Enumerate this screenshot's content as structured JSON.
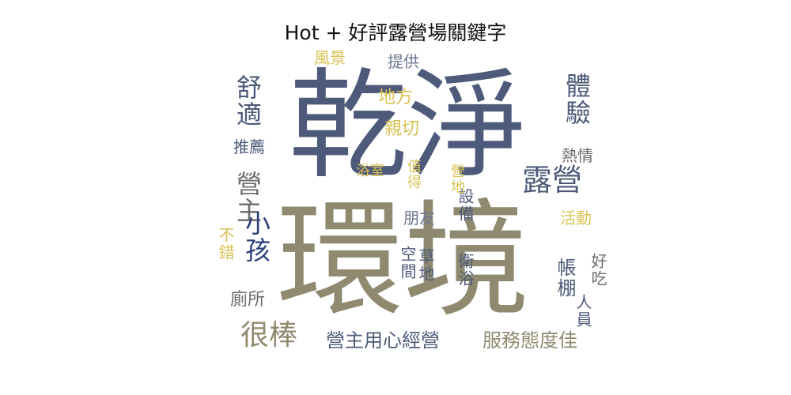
{
  "title": "Hot + 好評露營場關鍵字",
  "colors": {
    "navy": "#4d5a79",
    "khaki": "#8f8a6f",
    "gold": "#d9c253",
    "lightnavy": "#6f7792",
    "gray": "#6b6b6b",
    "darkblue": "#2a3f7a"
  },
  "chart_data": {
    "type": "wordcloud",
    "title": "Hot + 好評露營場關鍵字",
    "words": [
      {
        "text": "乾淨",
        "weight": 100,
        "color": "#4d5a79",
        "vertical": false
      },
      {
        "text": "環境",
        "weight": 96,
        "color": "#8f8a6f",
        "vertical": false
      },
      {
        "text": "露營",
        "weight": 30,
        "color": "#4d5a79",
        "vertical": false
      },
      {
        "text": "很棒",
        "weight": 28,
        "color": "#8f8a6f",
        "vertical": false
      },
      {
        "text": "舒適",
        "weight": 26,
        "color": "#4d5a79",
        "vertical": true
      },
      {
        "text": "營主",
        "weight": 26,
        "color": "#6b6b6b",
        "vertical": true
      },
      {
        "text": "體驗",
        "weight": 26,
        "color": "#4d5a79",
        "vertical": true
      },
      {
        "text": "小孩",
        "weight": 26,
        "color": "#2a3f7a",
        "vertical": true
      },
      {
        "text": "營主用心經營",
        "weight": 20,
        "color": "#4d5a79",
        "vertical": false
      },
      {
        "text": "服務態度佳",
        "weight": 20,
        "color": "#8f8a6f",
        "vertical": false
      },
      {
        "text": "帳棚",
        "weight": 20,
        "color": "#4d5a79",
        "vertical": true
      },
      {
        "text": "親切",
        "weight": 18,
        "color": "#d9c253",
        "vertical": false
      },
      {
        "text": "推薦",
        "weight": 18,
        "color": "#4d5a79",
        "vertical": false
      },
      {
        "text": "廁所",
        "weight": 18,
        "color": "#6b6b6b",
        "vertical": false
      },
      {
        "text": "地方",
        "weight": 18,
        "color": "#d9c253",
        "vertical": false
      },
      {
        "text": "提供",
        "weight": 16,
        "color": "#6f7792",
        "vertical": false
      },
      {
        "text": "風景",
        "weight": 16,
        "color": "#d9c253",
        "vertical": false
      },
      {
        "text": "熱情",
        "weight": 16,
        "color": "#6b6b6b",
        "vertical": false
      },
      {
        "text": "朋友",
        "weight": 16,
        "color": "#6f7792",
        "vertical": false
      },
      {
        "text": "活動",
        "weight": 16,
        "color": "#d9c253",
        "vertical": false
      },
      {
        "text": "人員",
        "weight": 16,
        "color": "#4d5a79",
        "vertical": true
      },
      {
        "text": "好吃",
        "weight": 16,
        "color": "#6b6b6b",
        "vertical": true
      },
      {
        "text": "不錯",
        "weight": 16,
        "color": "#d9c253",
        "vertical": true
      },
      {
        "text": "空間",
        "weight": 16,
        "color": "#4d5a79",
        "vertical": true
      },
      {
        "text": "草地",
        "weight": 16,
        "color": "#4d5a79",
        "vertical": true
      },
      {
        "text": "衛浴",
        "weight": 16,
        "color": "#4d5a79",
        "vertical": true
      },
      {
        "text": "設備",
        "weight": 16,
        "color": "#4d5a79",
        "vertical": true
      },
      {
        "text": "營地",
        "weight": 14,
        "color": "#d9c253",
        "vertical": true
      },
      {
        "text": "值得",
        "weight": 14,
        "color": "#d9c253",
        "vertical": true
      },
      {
        "text": "浴室",
        "weight": 14,
        "color": "#d9c253",
        "vertical": false
      }
    ]
  }
}
